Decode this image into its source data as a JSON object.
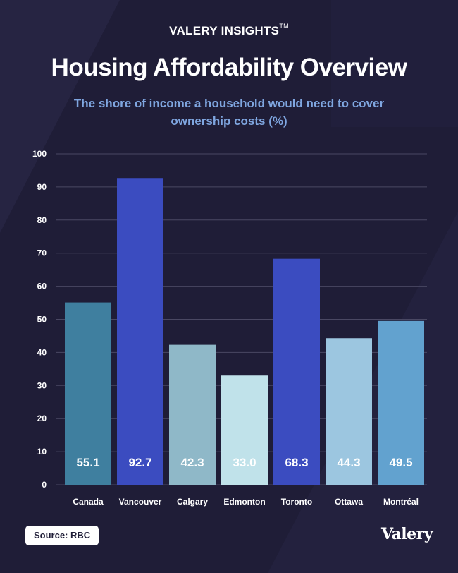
{
  "header": {
    "brand": "VALERY INSIGHTS",
    "brand_mark": "TM",
    "title": "Housing Affordability Overview",
    "subtitle": "The shore of income a household would need to cover ownership costs (%)"
  },
  "footer": {
    "source": "Source: RBC",
    "logo": "Valery"
  },
  "chart_data": {
    "type": "bar",
    "categories": [
      "Canada",
      "Vancouver",
      "Calgary",
      "Edmonton",
      "Toronto",
      "Ottawa",
      "Montréal"
    ],
    "values": [
      55.1,
      92.7,
      42.3,
      33.0,
      68.3,
      44.3,
      49.5
    ],
    "value_labels": [
      "55.1",
      "92.7",
      "42.3",
      "33.0",
      "68.3",
      "44.3",
      "49.5"
    ],
    "bar_colors": [
      "#3f7f9f",
      "#3b4cc0",
      "#8fb8c8",
      "#c0e2ea",
      "#3b4cc0",
      "#9cc6e0",
      "#62a2cf"
    ],
    "yticks": [
      0,
      10,
      20,
      30,
      40,
      50,
      60,
      70,
      80,
      90,
      100
    ],
    "ylim": [
      0,
      100
    ],
    "xlabel": "",
    "ylabel": "",
    "grid": true,
    "colors": {
      "grid": "#4a4863",
      "axis_text": "#ffffff",
      "label_text": "#ffffff"
    }
  }
}
